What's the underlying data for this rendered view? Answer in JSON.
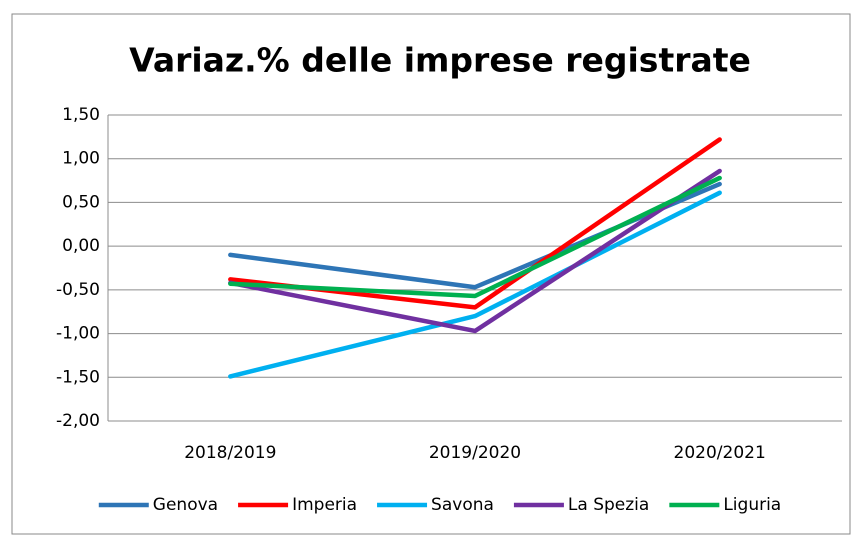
{
  "chart_data": {
    "type": "line",
    "title": "Variaz.% delle imprese registrate",
    "categories": [
      "2018/2019",
      "2019/2020",
      "2020/2021"
    ],
    "series": [
      {
        "name": "Genova",
        "color": "#2e75b6",
        "values": [
          -0.1,
          -0.47,
          0.71
        ]
      },
      {
        "name": "Imperia",
        "color": "#ff0000",
        "values": [
          -0.38,
          -0.7,
          1.22
        ]
      },
      {
        "name": "Savona",
        "color": "#00b0f0",
        "values": [
          -1.49,
          -0.8,
          0.61
        ]
      },
      {
        "name": "La Spezia",
        "color": "#7030a0",
        "values": [
          -0.42,
          -0.97,
          0.86
        ]
      },
      {
        "name": "Liguria",
        "color": "#00b050",
        "values": [
          -0.43,
          -0.57,
          0.78
        ]
      }
    ],
    "ylim": [
      -2,
      1.5
    ],
    "yticks": [
      {
        "value": -2,
        "label": "-2,00"
      },
      {
        "value": -1.5,
        "label": "-1,50"
      },
      {
        "value": -1,
        "label": "-1,00"
      },
      {
        "value": -0.5,
        "label": "-0,50"
      },
      {
        "value": 0,
        "label": "0,00"
      },
      {
        "value": 0.5,
        "label": "0,50"
      },
      {
        "value": 1,
        "label": "1,00"
      },
      {
        "value": 1.5,
        "label": "1,50"
      }
    ],
    "grid": true,
    "legend": "bottom"
  }
}
